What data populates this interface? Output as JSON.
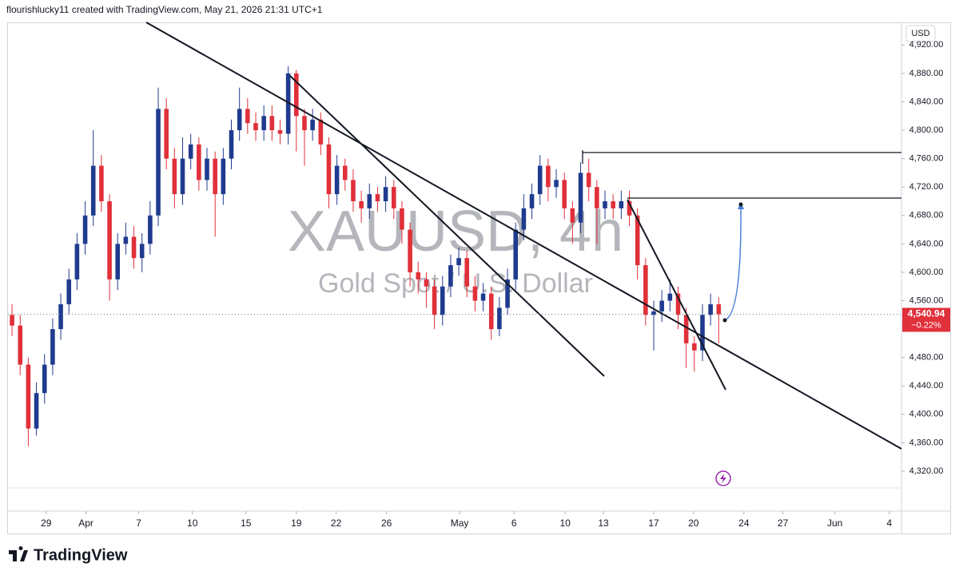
{
  "header": "flourishlucky11 created with TradingView.com, May 21, 2026 21:31 UTC+1",
  "brand": "TradingView",
  "chart_data": {
    "type": "candlestick",
    "title": "XAUUSD, 4h",
    "subtitle": "Gold Spot / U.S. Dollar",
    "currency": "USD",
    "last_price_label": "4,540.94",
    "change_label": "−0.22%",
    "up_color": "#1f3b8f",
    "down_color": "#e0303a",
    "open": [
      4540,
      4525,
      4470,
      4380,
      4430,
      4470,
      4520,
      4555,
      4590,
      4640,
      4680,
      4750,
      4700,
      4590,
      4640,
      4650,
      4620,
      4640,
      4680,
      4830,
      4760,
      4710,
      4760,
      4780,
      4730,
      4760,
      4710,
      4760,
      4800,
      4830,
      4810,
      4800,
      4820,
      4800,
      4795,
      4880,
      4820,
      4800,
      4815,
      4780,
      4710,
      4750,
      4730,
      4700,
      4690,
      4710,
      4700,
      4720,
      4690,
      4660,
      4600,
      4590,
      4580,
      4540,
      4580,
      4610,
      4620,
      4580,
      4560,
      4570,
      4520,
      4550,
      4590,
      4660,
      4690,
      4710,
      4750,
      4720,
      4730,
      4690,
      4670,
      4740,
      4720,
      4690,
      4700,
      4690,
      4700,
      4680,
      4610,
      4540,
      4545,
      4560,
      4570,
      4540,
      4500,
      4490,
      4540,
      4555
    ],
    "high": [
      4555,
      4540,
      4480,
      4445,
      4485,
      4535,
      4570,
      4605,
      4655,
      4700,
      4800,
      4765,
      4710,
      4655,
      4670,
      4665,
      4655,
      4700,
      4860,
      4845,
      4775,
      4790,
      4795,
      4790,
      4775,
      4770,
      4775,
      4815,
      4860,
      4845,
      4825,
      4835,
      4835,
      4815,
      4890,
      4885,
      4830,
      4830,
      4825,
      4790,
      4765,
      4760,
      4745,
      4715,
      4725,
      4720,
      4735,
      4730,
      4700,
      4670,
      4615,
      4600,
      4590,
      4595,
      4625,
      4635,
      4630,
      4595,
      4585,
      4580,
      4565,
      4605,
      4670,
      4710,
      4725,
      4765,
      4760,
      4745,
      4740,
      4700,
      4755,
      4760,
      4730,
      4715,
      4710,
      4715,
      4715,
      4690,
      4620,
      4560,
      4575,
      4590,
      4580,
      4550,
      4510,
      4555,
      4570,
      4565
    ],
    "low": [
      4510,
      4455,
      4355,
      4370,
      4415,
      4455,
      4505,
      4540,
      4575,
      4625,
      4665,
      4685,
      4560,
      4575,
      4625,
      4605,
      4600,
      4625,
      4665,
      4745,
      4690,
      4695,
      4745,
      4715,
      4715,
      4650,
      4695,
      4745,
      4785,
      4795,
      4785,
      4785,
      4785,
      4780,
      4780,
      4770,
      4750,
      4785,
      4765,
      4690,
      4695,
      4715,
      4685,
      4670,
      4675,
      4685,
      4685,
      4675,
      4640,
      4580,
      4570,
      4550,
      4520,
      4525,
      4565,
      4595,
      4565,
      4545,
      4545,
      4505,
      4510,
      4540,
      4575,
      4645,
      4675,
      4695,
      4700,
      4705,
      4675,
      4640,
      4655,
      4700,
      4640,
      4675,
      4675,
      4675,
      4665,
      4590,
      4525,
      4490,
      4530,
      4545,
      4520,
      4465,
      4460,
      4475,
      4525,
      4500
    ],
    "close": [
      4525,
      4470,
      4380,
      4430,
      4470,
      4520,
      4555,
      4590,
      4640,
      4680,
      4750,
      4700,
      4590,
      4640,
      4650,
      4620,
      4640,
      4680,
      4830,
      4760,
      4710,
      4760,
      4780,
      4730,
      4760,
      4710,
      4760,
      4800,
      4830,
      4810,
      4800,
      4820,
      4800,
      4795,
      4880,
      4820,
      4800,
      4815,
      4780,
      4710,
      4750,
      4730,
      4700,
      4690,
      4710,
      4700,
      4720,
      4690,
      4660,
      4600,
      4590,
      4580,
      4540,
      4580,
      4610,
      4620,
      4580,
      4560,
      4570,
      4520,
      4550,
      4590,
      4660,
      4690,
      4710,
      4750,
      4720,
      4730,
      4690,
      4670,
      4740,
      4720,
      4690,
      4700,
      4690,
      4700,
      4680,
      4610,
      4540,
      4545,
      4560,
      4570,
      4540,
      4500,
      4490,
      4540,
      4555,
      4540.94
    ],
    "xlim": [
      0,
      110
    ],
    "xticks": [
      {
        "value": 4.7,
        "label": "29"
      },
      {
        "value": 9.6,
        "label": "Apr"
      },
      {
        "value": 16.1,
        "label": "7"
      },
      {
        "value": 22.7,
        "label": "10"
      },
      {
        "value": 29.3,
        "label": "15"
      },
      {
        "value": 35.5,
        "label": "19"
      },
      {
        "value": 40.4,
        "label": "22"
      },
      {
        "value": 46.6,
        "label": "26"
      },
      {
        "value": 55.6,
        "label": "May"
      },
      {
        "value": 62.3,
        "label": "6"
      },
      {
        "value": 68.6,
        "label": "10"
      },
      {
        "value": 73.3,
        "label": "13"
      },
      {
        "value": 79.5,
        "label": "17"
      },
      {
        "value": 84.4,
        "label": "20"
      },
      {
        "value": 90.6,
        "label": "24"
      },
      {
        "value": 95.4,
        "label": "27"
      },
      {
        "value": 101.8,
        "label": "Jun"
      },
      {
        "value": 108.5,
        "label": "4"
      }
    ],
    "ylim": [
      4297.5,
      4949.6
    ],
    "yticks": [
      {
        "value": 4320,
        "label": "4,320.00"
      },
      {
        "value": 4360,
        "label": "4,360.00"
      },
      {
        "value": 4400,
        "label": "4,400.00"
      },
      {
        "value": 4440,
        "label": "4,440.00"
      },
      {
        "value": 4480,
        "label": "4,480.00"
      },
      {
        "value": 4560,
        "label": "4,560.00"
      },
      {
        "value": 4600,
        "label": "4,600.00"
      },
      {
        "value": 4640,
        "label": "4,640.00"
      },
      {
        "value": 4680,
        "label": "4,680.00"
      },
      {
        "value": 4720,
        "label": "4,720.00"
      },
      {
        "value": 4760,
        "label": "4,760.00"
      },
      {
        "value": 4800,
        "label": "4,800.00"
      },
      {
        "value": 4840,
        "label": "4,840.00"
      },
      {
        "value": 4880,
        "label": "4,880.00"
      },
      {
        "value": 4920,
        "label": "4,920.00"
      }
    ]
  }
}
